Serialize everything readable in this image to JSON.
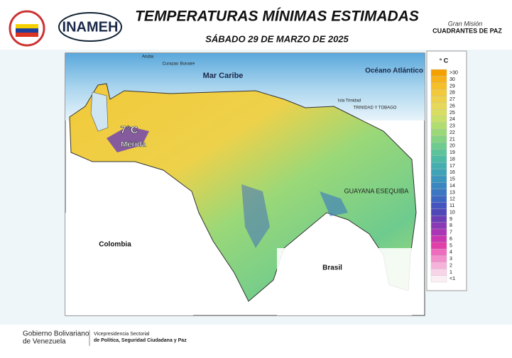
{
  "header": {
    "title": "TEMPERATURAS MÍNIMAS ESTIMADAS",
    "date": "SÁBADO 29 DE MARZO DE 2025",
    "logo": "INAMEH",
    "mission_line1": "Gran Misión",
    "mission_line2": "CUADRANTES DE PAZ"
  },
  "map": {
    "labels": {
      "sea": "Mar Caribe",
      "ocean": "Océano Atlántico",
      "colombia": "Colombia",
      "brasil": "Brasil",
      "esequibo": "GUAYANA ESEQUIBA",
      "aruba": "Aruba",
      "curazao": "Curazao",
      "bonaire": "Bonaire",
      "trinidad": "TRINIDAD Y TOBAGO",
      "isla_trinidad": "Isla Trinidad"
    },
    "highlight": {
      "value": "7°C",
      "place": "Mérida"
    }
  },
  "legend": {
    "unit": "° C",
    "entries": [
      {
        "label": ">30",
        "color": "#f4a100"
      },
      {
        "label": "30",
        "color": "#f7b21a"
      },
      {
        "label": "29",
        "color": "#f5bf2a"
      },
      {
        "label": "28",
        "color": "#f2c93a"
      },
      {
        "label": "27",
        "color": "#eed14a"
      },
      {
        "label": "26",
        "color": "#e6d85a"
      },
      {
        "label": "25",
        "color": "#d9de62"
      },
      {
        "label": "24",
        "color": "#c6e06a"
      },
      {
        "label": "23",
        "color": "#b0dd70"
      },
      {
        "label": "22",
        "color": "#9ad878"
      },
      {
        "label": "21",
        "color": "#84d282"
      },
      {
        "label": "20",
        "color": "#6ecb8e"
      },
      {
        "label": "19",
        "color": "#5cc39a"
      },
      {
        "label": "18",
        "color": "#4ebaa6"
      },
      {
        "label": "17",
        "color": "#45afb0"
      },
      {
        "label": "16",
        "color": "#3fa3b8"
      },
      {
        "label": "15",
        "color": "#3b95bd"
      },
      {
        "label": "14",
        "color": "#3986c0"
      },
      {
        "label": "13",
        "color": "#3a76c2"
      },
      {
        "label": "12",
        "color": "#3d66c2"
      },
      {
        "label": "11",
        "color": "#4455bf"
      },
      {
        "label": "10",
        "color": "#5048b8"
      },
      {
        "label": "9",
        "color": "#6a3fb5"
      },
      {
        "label": "8",
        "color": "#8a3ab5"
      },
      {
        "label": "7",
        "color": "#ab36b5"
      },
      {
        "label": "6",
        "color": "#c936b0"
      },
      {
        "label": "5",
        "color": "#e040a8"
      },
      {
        "label": "4",
        "color": "#ef6bbe"
      },
      {
        "label": "3",
        "color": "#f290cc"
      },
      {
        "label": "2",
        "color": "#f5b3da"
      },
      {
        "label": "1",
        "color": "#f8d4e8"
      },
      {
        "label": "<1",
        "color": "#fbeef5"
      }
    ]
  },
  "footer": {
    "gov_line1": "Gobierno Bolivariano",
    "gov_line2": "de Venezuela",
    "vp_line1": "Vicepresidencia Sectorial",
    "vp_line2": "de Política, Seguridad Ciudadana y Paz"
  }
}
